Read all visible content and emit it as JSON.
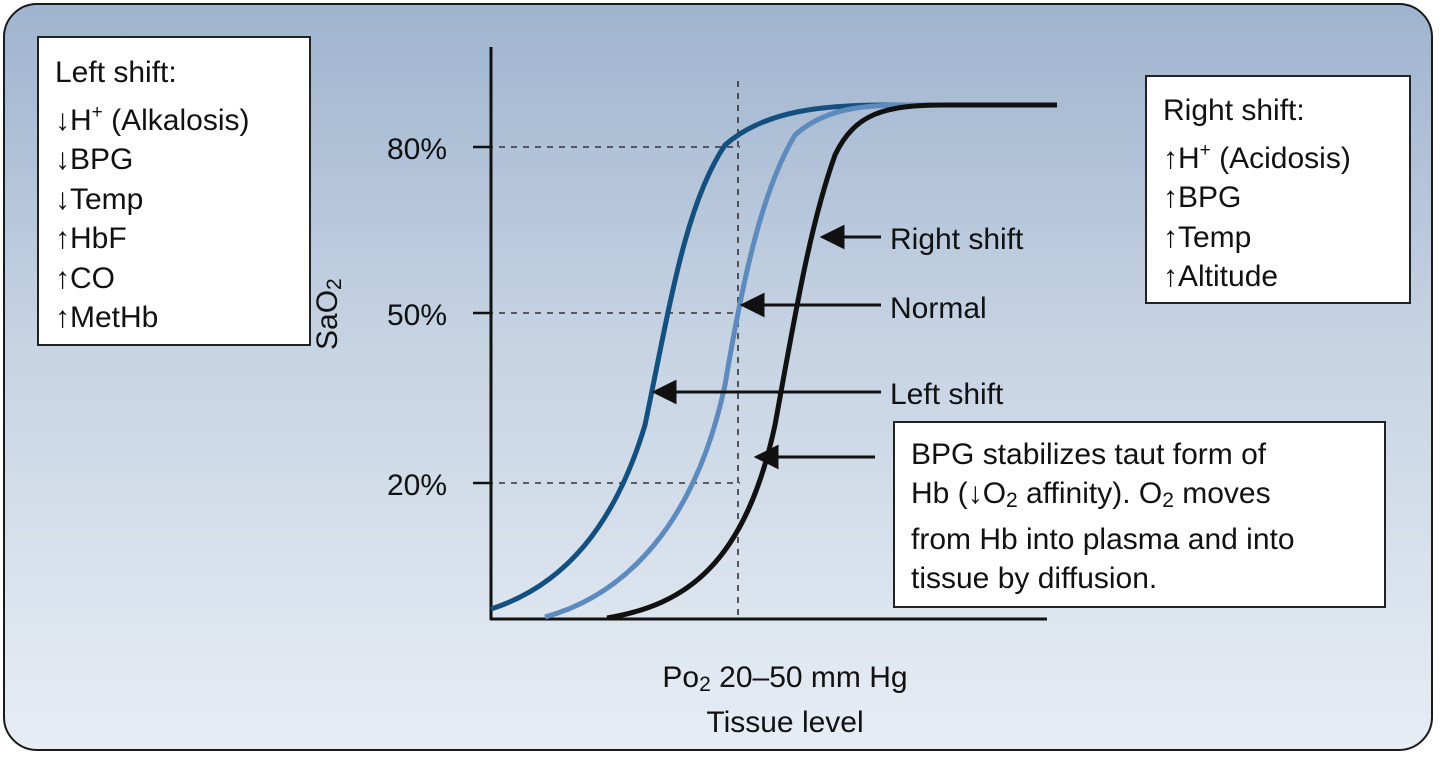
{
  "left_box": {
    "title": "Left shift:",
    "items": [
      {
        "arrow": "↓",
        "text": "H",
        "sup": "+",
        "rest": " (Alkalosis)"
      },
      {
        "arrow": "↓",
        "text": "BPG",
        "sup": "",
        "rest": ""
      },
      {
        "arrow": "↓",
        "text": "Temp",
        "sup": "",
        "rest": ""
      },
      {
        "arrow": "↑",
        "text": "HbF",
        "sup": "",
        "rest": ""
      },
      {
        "arrow": "↑",
        "text": "CO",
        "sup": "",
        "rest": ""
      },
      {
        "arrow": "↑",
        "text": "MetHb",
        "sup": "",
        "rest": ""
      }
    ]
  },
  "right_box": {
    "title": "Right shift:",
    "items": [
      {
        "arrow": "↑",
        "text": "H",
        "sup": "+",
        "rest": " (Acidosis)"
      },
      {
        "arrow": "↑",
        "text": "BPG",
        "sup": "",
        "rest": ""
      },
      {
        "arrow": "↑",
        "text": "Temp",
        "sup": "",
        "rest": ""
      },
      {
        "arrow": "↑",
        "text": "Altitude",
        "sup": "",
        "rest": ""
      }
    ]
  },
  "note": {
    "line1": "BPG stabilizes taut form of",
    "line2_a": "Hb (",
    "line2_arrow": "↓",
    "line2_b": "O",
    "line2_sub": "2",
    "line2_c": " affinity). O",
    "line2_sub2": "2",
    "line2_d": " moves",
    "line3": "from Hb into plasma and into",
    "line4": "tissue by diffusion."
  },
  "axes": {
    "y_label_main": "SaO",
    "y_label_sub": "2",
    "y_ticks": [
      "80%",
      "50%",
      "20%"
    ],
    "x_label_main": "Po",
    "x_label_sub": "2",
    "x_label_rest": " 20–50 mm Hg",
    "x_label_line2": "Tissue level"
  },
  "curve_labels": {
    "right": "Right shift",
    "normal": "Normal",
    "left": "Left shift"
  },
  "colors": {
    "left_curve": "#13507f",
    "normal_curve": "#5d8bbd",
    "right_curve": "#111111",
    "background_top": "#9fb4cf",
    "background_bottom": "#e7edf4"
  },
  "chart_data": {
    "type": "line",
    "ylabel": "SaO2",
    "y_ticks": [
      80,
      50,
      20
    ],
    "series": [
      {
        "name": "Left shift",
        "p50_offset": -1
      },
      {
        "name": "Normal",
        "p50_offset": 0
      },
      {
        "name": "Right shift",
        "p50_offset": 1
      }
    ]
  }
}
